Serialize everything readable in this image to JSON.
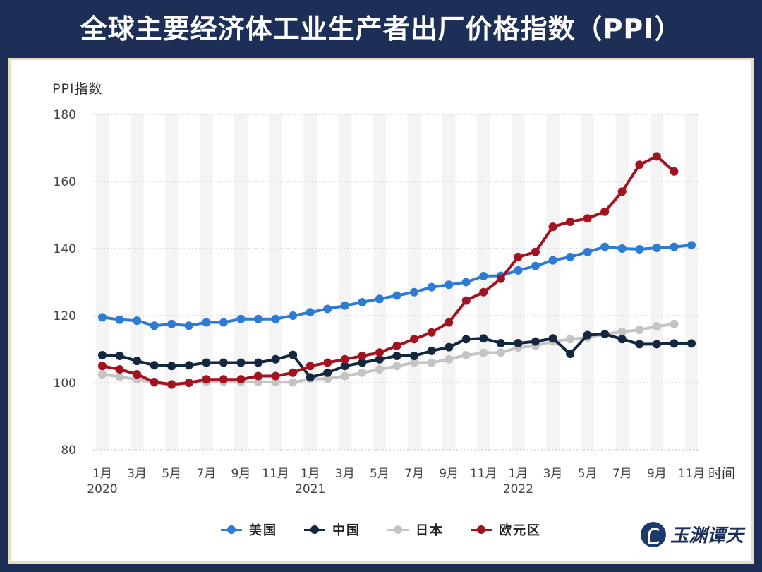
{
  "header": {
    "title": "全球主要经济体工业生产者出厂价格指数（PPI）"
  },
  "brand": {
    "text": "玉渊谭天",
    "icon": "brand-logo-icon"
  },
  "colors": {
    "background": "#1e2f57",
    "us": "#2e7bd3",
    "cn": "#13273f",
    "jp": "#c4c4c4",
    "eu": "#a3121f"
  },
  "chart_data": {
    "type": "line",
    "ylabel": "PPI指数",
    "xlabel": "时间",
    "ylim": [
      80,
      180
    ],
    "yticks": [
      "80",
      "100",
      "120",
      "140",
      "160",
      "180"
    ],
    "grid": "horizontal dotted, alternating vertical month bands",
    "legend_position": "bottom-center",
    "x_tick_labels": [
      {
        "month": 0,
        "label": "1月",
        "year": "2020"
      },
      {
        "month": 2,
        "label": "3月"
      },
      {
        "month": 4,
        "label": "5月"
      },
      {
        "month": 6,
        "label": "7月"
      },
      {
        "month": 8,
        "label": "9月"
      },
      {
        "month": 10,
        "label": "11月"
      },
      {
        "month": 12,
        "label": "1月",
        "year": "2021"
      },
      {
        "month": 14,
        "label": "3月"
      },
      {
        "month": 16,
        "label": "5月"
      },
      {
        "month": 18,
        "label": "7月"
      },
      {
        "month": 20,
        "label": "9月"
      },
      {
        "month": 22,
        "label": "11月"
      },
      {
        "month": 24,
        "label": "1月",
        "year": "2022"
      },
      {
        "month": 26,
        "label": "3月"
      },
      {
        "month": 28,
        "label": "5月"
      },
      {
        "month": 30,
        "label": "7月"
      },
      {
        "month": 32,
        "label": "9月"
      },
      {
        "month": 34,
        "label": "11月"
      }
    ],
    "series": [
      {
        "key": "us",
        "name": "美国",
        "values": [
          119.5,
          118.8,
          118.5,
          117.0,
          117.5,
          117.0,
          118.0,
          118.0,
          119.0,
          119.0,
          119.0,
          120.0,
          121.0,
          122.0,
          123.0,
          124.0,
          125.0,
          126.0,
          127.0,
          128.5,
          129.2,
          130.0,
          131.8,
          131.9,
          133.5,
          134.8,
          136.5,
          137.5,
          139.0,
          140.5,
          140.0,
          139.8,
          140.2,
          140.5,
          141.0
        ]
      },
      {
        "key": "cn",
        "name": "中国",
        "values": [
          108.2,
          108.0,
          106.5,
          105.2,
          105.0,
          105.2,
          106.0,
          106.0,
          106.0,
          106.0,
          107.0,
          108.3,
          101.6,
          103.0,
          105.0,
          106.0,
          107.0,
          108.0,
          108.0,
          109.5,
          110.6,
          113.0,
          113.2,
          111.8,
          111.8,
          112.3,
          113.2,
          108.6,
          114.2,
          114.5,
          113.0,
          111.5,
          111.5,
          111.7,
          111.7
        ]
      },
      {
        "key": "jp",
        "name": "日本",
        "values": [
          102.5,
          101.8,
          101.0,
          100.0,
          99.3,
          99.9,
          100.3,
          100.3,
          100.3,
          100.2,
          100.2,
          100.1,
          101.1,
          101.2,
          102.0,
          103.0,
          104.0,
          105.0,
          106.0,
          106.0,
          107.0,
          108.2,
          108.9,
          109.0,
          110.5,
          111.0,
          112.3,
          113.0,
          113.5,
          114.5,
          115.2,
          115.8,
          116.8,
          117.5
        ]
      },
      {
        "key": "eu",
        "name": "欧元区",
        "values": [
          105.0,
          104.0,
          102.5,
          100.2,
          99.5,
          100.0,
          101.0,
          101.0,
          101.0,
          102.0,
          102.0,
          103.0,
          105.0,
          106.0,
          107.0,
          108.0,
          109.0,
          111.0,
          113.0,
          115.0,
          118.0,
          124.5,
          127.0,
          131.0,
          137.5,
          139.0,
          146.5,
          148.0,
          149.0,
          151.0,
          157.0,
          165.0,
          167.5,
          163.0
        ]
      }
    ]
  }
}
